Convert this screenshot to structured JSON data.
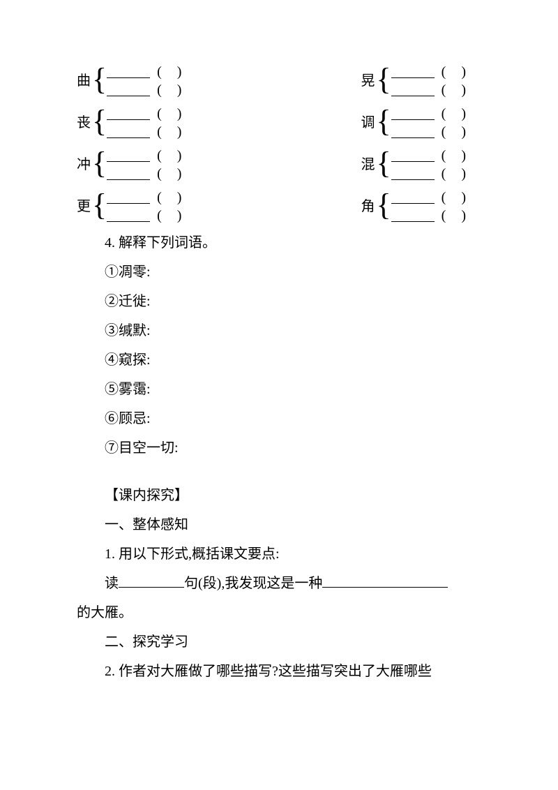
{
  "brackets": {
    "row1": {
      "left": "曲",
      "right": "晃"
    },
    "row2": {
      "left": "丧",
      "right": "调"
    },
    "row3": {
      "left": "冲",
      "right": "混"
    },
    "row4": {
      "left": "更",
      "right": "角"
    }
  },
  "q4": {
    "heading": "4. 解释下列词语。",
    "items": [
      "①凋零:",
      "②迁徙:",
      "③缄默:",
      "④窥探:",
      "⑤雾霭:",
      "⑥顾忌:",
      "⑦目空一切:"
    ]
  },
  "section": {
    "title": "【课内探究】",
    "sub1": "一、整体感知",
    "q1_prefix": "1. 用以下形式,概括课文要点:",
    "q1_line_prefix": "读",
    "q1_line_mid": "句(段),我发现这是一种",
    "q1_tail": "的大雁。",
    "sub2": "二、探究学习",
    "q2": "2. 作者对大雁做了哪些描写?这些描写突出了大雁哪些"
  }
}
